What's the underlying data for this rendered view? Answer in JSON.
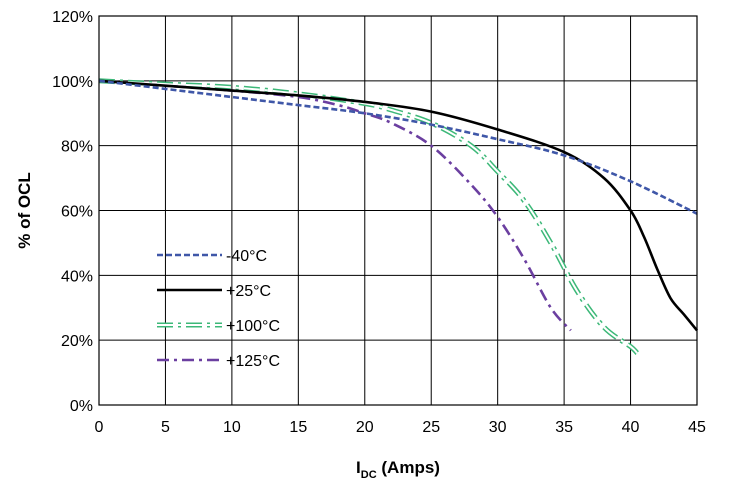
{
  "chart_data": {
    "type": "line",
    "title": "",
    "xlabel_main": "I",
    "xlabel_sub": "DC",
    "xlabel_rest": " (Amps)",
    "ylabel": "% of OCL",
    "xlim": [
      0,
      45
    ],
    "ylim": [
      0,
      120
    ],
    "x_ticks": [
      0,
      5,
      10,
      15,
      20,
      25,
      30,
      35,
      40,
      45
    ],
    "y_ticks": [
      0,
      20,
      40,
      60,
      80,
      100,
      120
    ],
    "x_tick_labels": [
      "0",
      "5",
      "10",
      "15",
      "20",
      "25",
      "30",
      "35",
      "40",
      "45"
    ],
    "y_tick_labels": [
      "0%",
      "20%",
      "40%",
      "60%",
      "80%",
      "100%",
      "120%"
    ],
    "grid": true,
    "legend_position": "lower-left",
    "series": [
      {
        "name": "-40°C",
        "color": "#3f57a8",
        "style": "dashed",
        "x": [
          0,
          5,
          10,
          15,
          20,
          25,
          30,
          35,
          40,
          45
        ],
        "y": [
          100,
          97.5,
          95,
          92.5,
          90,
          86.5,
          82,
          77,
          69,
          59
        ]
      },
      {
        "name": "+25°C",
        "color": "#000000",
        "style": "solid",
        "x": [
          0,
          5,
          10,
          15,
          20,
          25,
          30,
          35,
          38,
          40,
          41,
          42,
          43,
          44,
          45
        ],
        "y": [
          100,
          98.5,
          97,
          95.5,
          93.5,
          90.5,
          85,
          78,
          70,
          60,
          52,
          42,
          33,
          28,
          23
        ]
      },
      {
        "name": "+100°C",
        "color": "#3cb878",
        "style": "dash-dot-double",
        "x": [
          0,
          5,
          10,
          15,
          20,
          22,
          25,
          28,
          30,
          32,
          34,
          36,
          38,
          40,
          40.5
        ],
        "y": [
          100,
          99,
          98,
          96,
          93,
          91,
          87,
          80,
          72,
          63,
          50,
          35,
          24,
          18,
          16
        ]
      },
      {
        "name": "+125°C",
        "color": "#6b3fa0",
        "style": "dash-dot",
        "x": [
          0,
          5,
          10,
          15,
          18,
          20,
          22,
          25,
          28,
          30,
          32,
          34,
          35.5
        ],
        "y": [
          100,
          98.5,
          97,
          95,
          92.5,
          90,
          87,
          80,
          68,
          58,
          45,
          30,
          23
        ]
      }
    ]
  }
}
